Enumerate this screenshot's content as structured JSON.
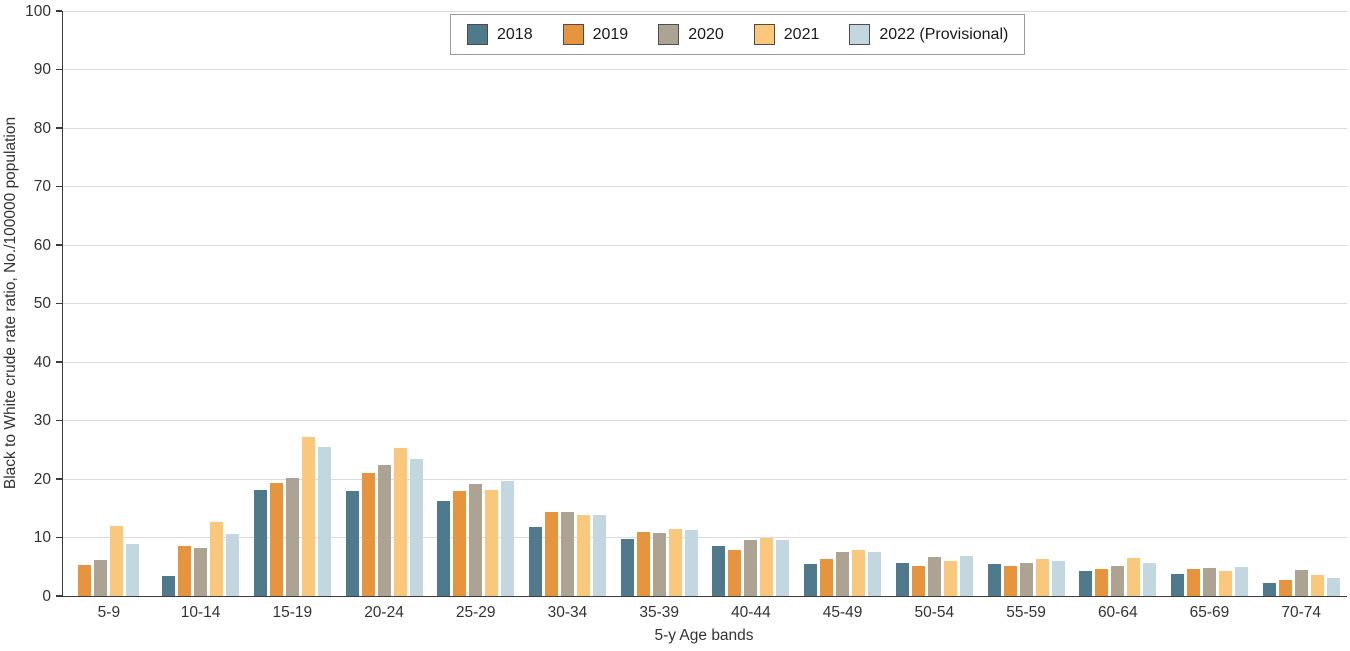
{
  "chart_data": {
    "type": "bar",
    "title": "",
    "xlabel": "5-y Age bands",
    "ylabel": "Black to White crude rate ratio, No./100000 population",
    "ylim": [
      0,
      100
    ],
    "y_ticks": [
      0,
      10,
      20,
      30,
      40,
      50,
      60,
      70,
      80,
      90,
      100
    ],
    "grid": "horizontal gridlines at every 10",
    "legend_position": "top-center",
    "categories": [
      "5-9",
      "10-14",
      "15-19",
      "20-24",
      "25-29",
      "30-34",
      "35-39",
      "40-44",
      "45-49",
      "50-54",
      "55-59",
      "60-64",
      "65-69",
      "70-74"
    ],
    "series": [
      {
        "name": "2018",
        "color": "#4e7a8c",
        "values": [
          0,
          3.5,
          18.1,
          18.0,
          16.3,
          11.8,
          9.8,
          8.6,
          5.5,
          5.6,
          5.4,
          4.3,
          3.8,
          2.2
        ]
      },
      {
        "name": "2019",
        "color": "#e6943e",
        "values": [
          5.3,
          8.5,
          19.4,
          21.1,
          17.9,
          14.4,
          10.9,
          7.8,
          6.3,
          5.1,
          5.1,
          4.7,
          4.7,
          2.7
        ]
      },
      {
        "name": "2020",
        "color": "#aca393",
        "values": [
          6.2,
          8.2,
          20.2,
          22.4,
          19.1,
          14.3,
          10.8,
          9.5,
          7.5,
          6.7,
          5.6,
          5.2,
          4.8,
          4.4
        ]
      },
      {
        "name": "2021",
        "color": "#fac87d",
        "values": [
          12.0,
          12.6,
          27.1,
          25.3,
          18.2,
          13.8,
          11.4,
          10.0,
          7.8,
          6.0,
          6.4,
          6.5,
          4.2,
          3.6
        ]
      },
      {
        "name": "2022 (Provisional)",
        "color": "#c3d7e0",
        "values": [
          8.9,
          10.6,
          25.4,
          23.5,
          19.7,
          13.9,
          11.3,
          9.6,
          7.5,
          6.9,
          6.0,
          5.7,
          4.9,
          3.1
        ]
      }
    ]
  },
  "colors": {
    "axis": "#3b3b3b",
    "grid": "#dcdcdc",
    "text": "#333333",
    "legend_border": "#9a9a9a",
    "swatch_border": "#4c4c4c",
    "background": "#ffffff"
  }
}
